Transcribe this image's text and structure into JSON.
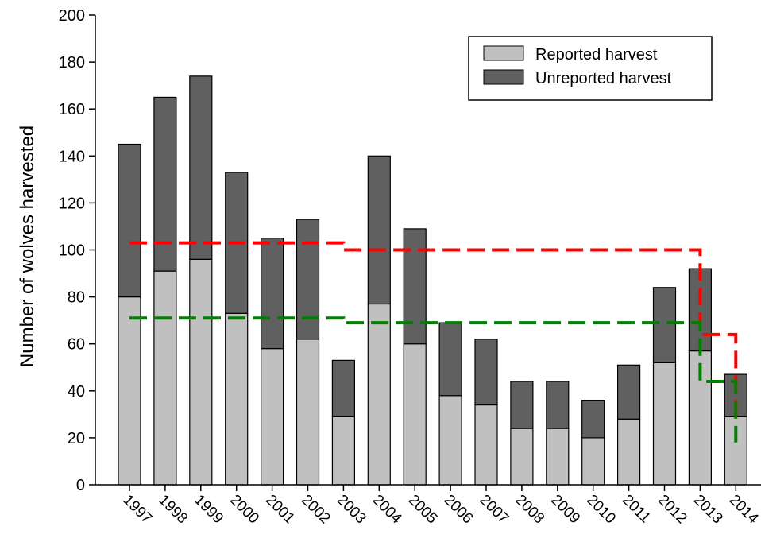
{
  "chart_data": {
    "type": "bar",
    "stacked": true,
    "ylabel": "Number of wolves harvested",
    "xlabel": "",
    "ylim": [
      0,
      200
    ],
    "yticks": [
      0,
      20,
      40,
      60,
      80,
      100,
      120,
      140,
      160,
      180,
      200
    ],
    "categories": [
      "1997",
      "1998",
      "1999",
      "2000",
      "2001",
      "2002",
      "2003",
      "2004",
      "2005",
      "2006",
      "2007",
      "2008",
      "2009",
      "2010",
      "2011",
      "2012",
      "2013",
      "2014"
    ],
    "series": [
      {
        "name": "Reported harvest",
        "color": "#c0c0c0",
        "values": [
          80,
          91,
          96,
          73,
          58,
          62,
          29,
          77,
          60,
          38,
          34,
          24,
          24,
          20,
          28,
          52,
          57,
          29
        ]
      },
      {
        "name": "Unreported harvest",
        "color": "#606060",
        "values": [
          65,
          74,
          78,
          60,
          47,
          51,
          24,
          63,
          49,
          31,
          28,
          20,
          20,
          16,
          23,
          32,
          35,
          18
        ]
      }
    ],
    "reference_lines": [
      {
        "color": "#ff0000",
        "style": "dashed",
        "steps": [
          {
            "from": "1997",
            "to": "2003",
            "y": 103
          },
          {
            "from": "2003",
            "to": "2013",
            "y": 100
          },
          {
            "from": "2013",
            "to": "2014",
            "y": 64
          },
          {
            "from": "2014",
            "to": "2014",
            "y": 28
          }
        ]
      },
      {
        "color": "#008000",
        "style": "dashed",
        "steps": [
          {
            "from": "1997",
            "to": "2003",
            "y": 71
          },
          {
            "from": "2003",
            "to": "2013",
            "y": 69
          },
          {
            "from": "2013",
            "to": "2014",
            "y": 44
          },
          {
            "from": "2014",
            "to": "2014",
            "y": 18
          }
        ]
      }
    ],
    "legend_position": "top-right",
    "grid": false
  }
}
